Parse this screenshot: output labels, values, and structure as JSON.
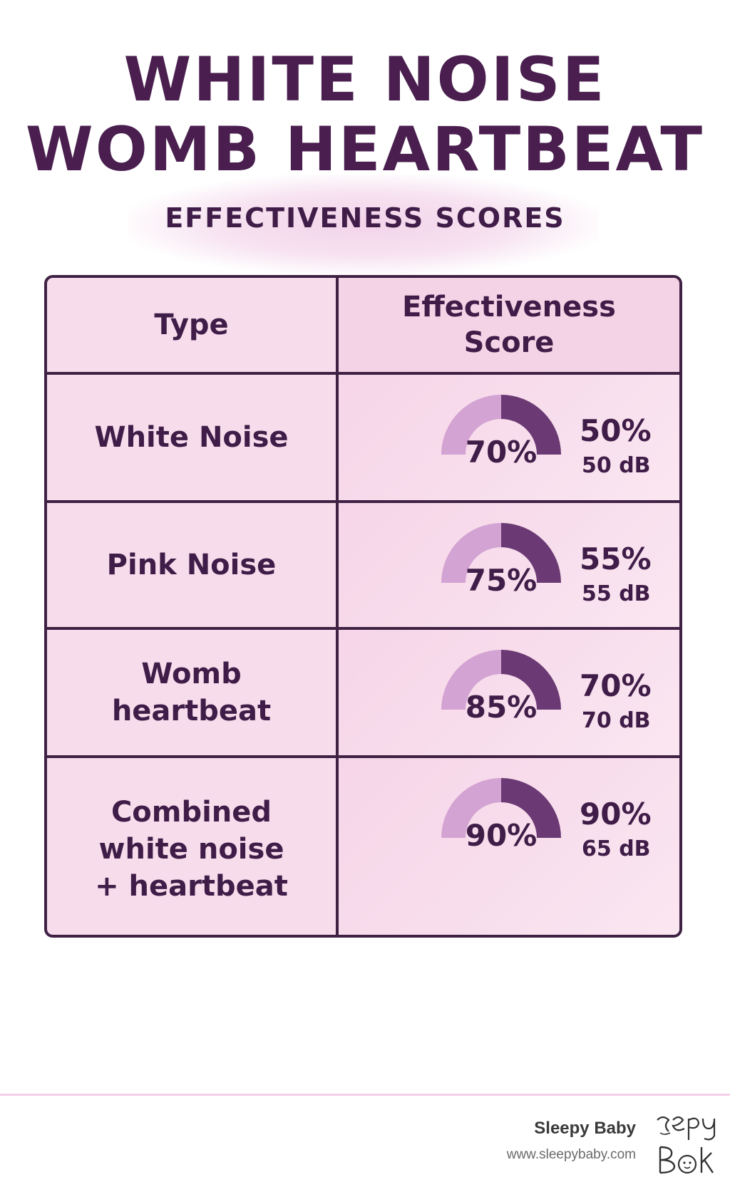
{
  "header": {
    "title_line1": "WHITE NOISE",
    "title_line2": "WOMB HEARTBEAT",
    "subtitle": "EFFECTIVENESS SCORES"
  },
  "table": {
    "col_type": "Type",
    "col_score": "Effectiveness Score",
    "rows": [
      {
        "type": "White Noise",
        "gauge_label": "70%",
        "pct": "50%",
        "db": "50 dB"
      },
      {
        "type": "Pink Noise",
        "gauge_label": "75%",
        "pct": "55%",
        "db": "55 dB"
      },
      {
        "type": "Womb heartbeat",
        "gauge_label": "85%",
        "pct": "70%",
        "db": "70 dB"
      },
      {
        "type": "Combined white noise + heartbeat",
        "gauge_label": "90%",
        "pct": "90%",
        "db": "65 dB"
      }
    ]
  },
  "chart_data": {
    "type": "table",
    "columns": [
      "Type",
      "Effectiveness Score"
    ],
    "rows": [
      {
        "type": "White Noise",
        "effectiveness_score": 70,
        "percent": 50,
        "decibels": 50
      },
      {
        "type": "Pink Noise",
        "effectiveness_score": 75,
        "percent": 55,
        "decibels": 55
      },
      {
        "type": "Womb heartbeat",
        "effectiveness_score": 85,
        "percent": 70,
        "decibels": 70
      },
      {
        "type": "Combined white noise + heartbeat",
        "effectiveness_score": 90,
        "percent": 90,
        "decibels": 65
      }
    ]
  },
  "footer": {
    "brand": "Sleepy Baby",
    "url": "www.sleepybaby.com"
  },
  "colors": {
    "title": "#4a1f4f",
    "border": "#3f2144",
    "gauge_light": "#d3a3d3",
    "gauge_dark": "#6b3a74",
    "table_bg": "#f7dcec"
  }
}
